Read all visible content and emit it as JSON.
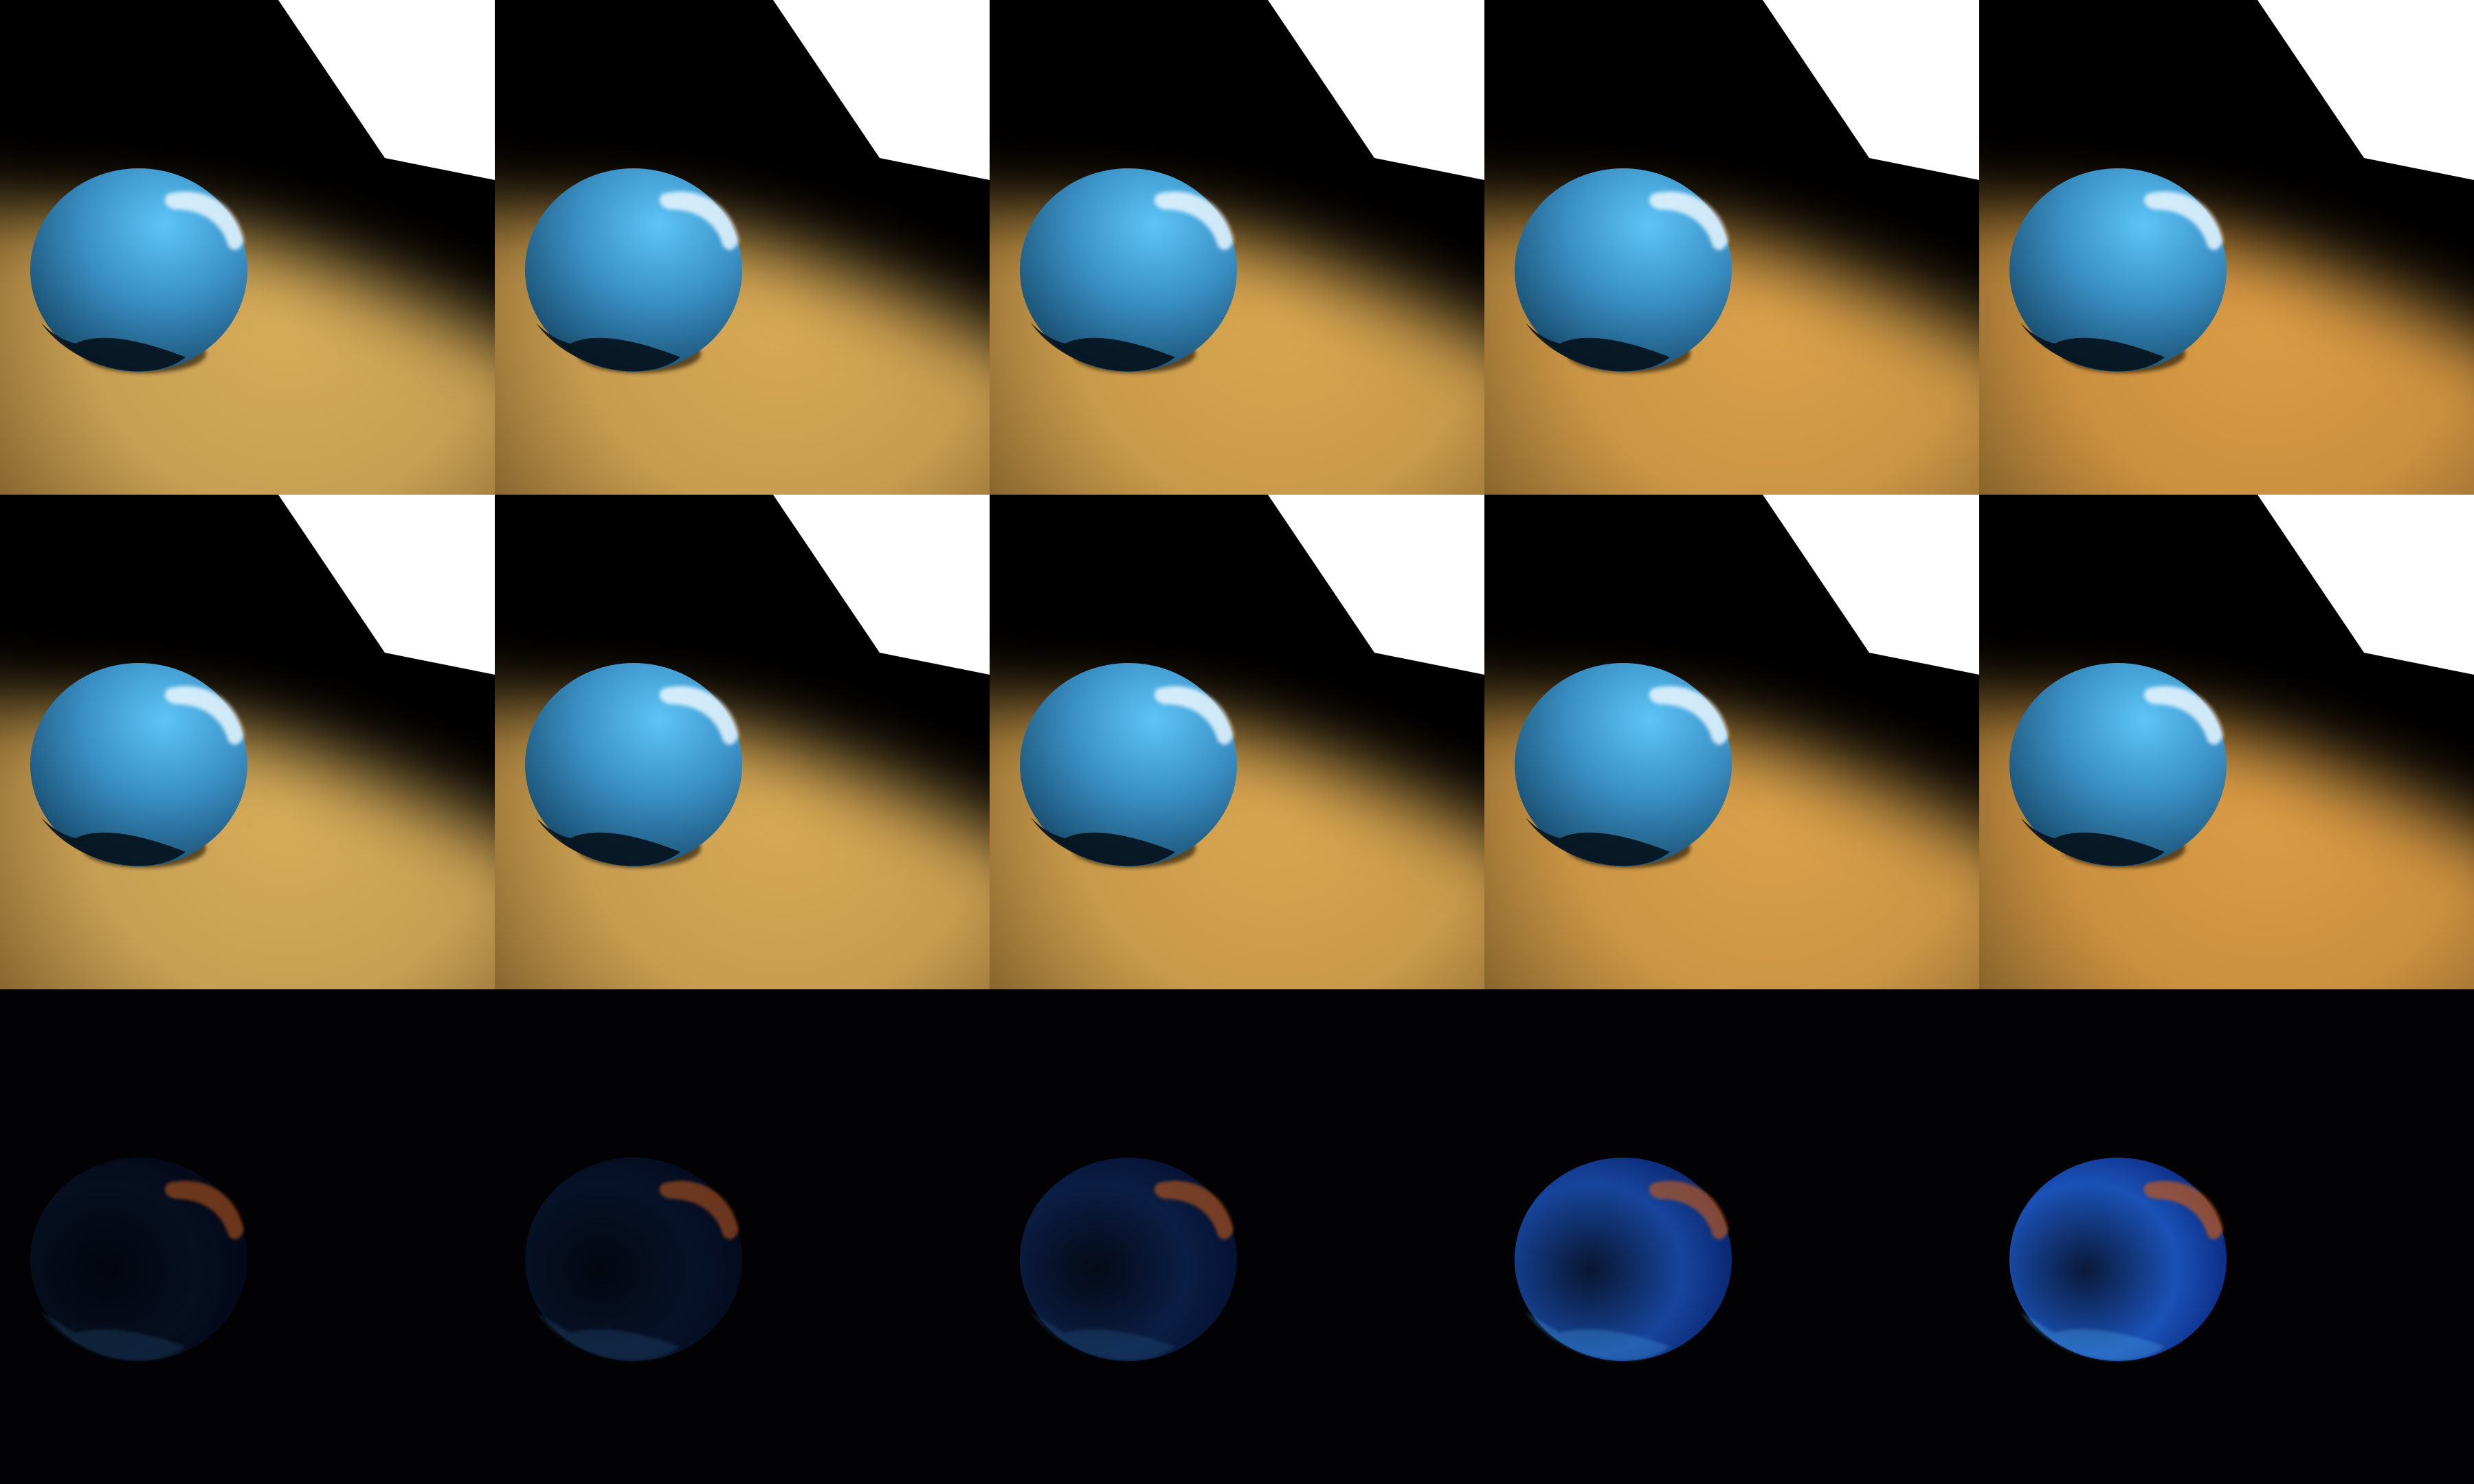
{
  "rows": [
    {
      "kind": "render",
      "cells": [
        {
          "floor_color": "#d8ad5a"
        },
        {
          "floor_color": "#d9aa56"
        },
        {
          "floor_color": "#daa751"
        },
        {
          "floor_color": "#dba24b"
        },
        {
          "floor_color": "#dc9d45"
        }
      ]
    },
    {
      "kind": "render",
      "cells": [
        {
          "floor_color": "#d8ad5a"
        },
        {
          "floor_color": "#d9aa56"
        },
        {
          "floor_color": "#daa751"
        },
        {
          "floor_color": "#dba24b"
        },
        {
          "floor_color": "#dc9d45"
        }
      ]
    },
    {
      "kind": "difference",
      "cells": [
        {
          "sphere_glow_intensity": 0.15,
          "highlight_intensity": 0.55
        },
        {
          "sphere_glow_intensity": 0.2,
          "highlight_intensity": 0.55
        },
        {
          "sphere_glow_intensity": 0.35,
          "highlight_intensity": 0.6
        },
        {
          "sphere_glow_intensity": 0.85,
          "highlight_intensity": 0.65
        },
        {
          "sphere_glow_intensity": 1.0,
          "highlight_intensity": 0.7
        }
      ]
    }
  ],
  "colors": {
    "sphere_light": "#5cc4f7",
    "sphere_mid": "#3a8fc4",
    "sphere_dark": "#0e2a3e",
    "floor_shadow": "#000000",
    "wall": "#ffffff",
    "highlight": "#e9f7ff",
    "diff_glow": "#1f5fd6",
    "diff_highlight": "#c05a1a"
  }
}
